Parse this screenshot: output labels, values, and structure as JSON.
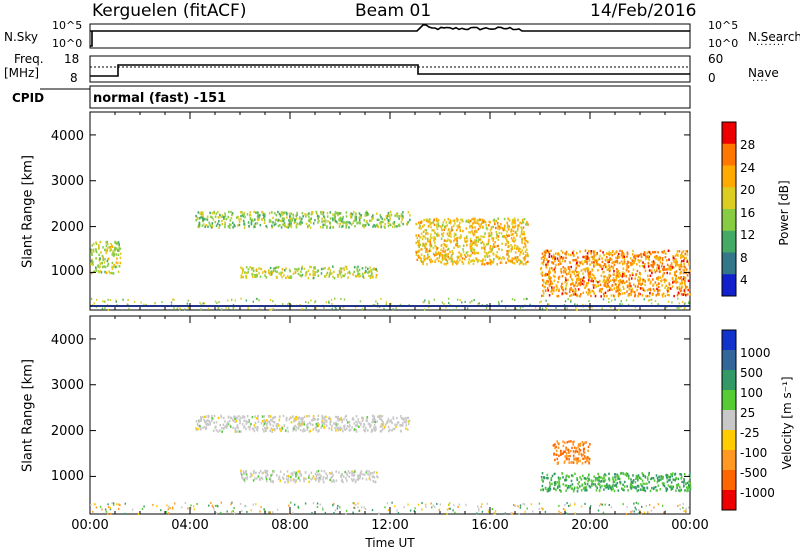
{
  "header": {
    "station": "Kerguelen (fitACF)",
    "beam": "Beam 01",
    "date": "14/Feb/2016"
  },
  "panels": {
    "nsky_label": "N.Sky",
    "nsky_ticks": [
      "10^5",
      "10^0"
    ],
    "nsearch_label": "N.Search",
    "nsearch_ticks": [
      "10^5",
      "10^0"
    ],
    "freq_label_1": "Freq.",
    "freq_label_2": "[MHz]",
    "freq_ticks": [
      "18",
      "8"
    ],
    "nave_label": "Nave",
    "nave_ticks": [
      "60",
      "0"
    ],
    "cpid_label": "CPID",
    "mode_text": "normal (fast) -151"
  },
  "axes": {
    "ylabel_top": "Slant Range [km]",
    "ylabel_bottom": "Slant Range [km]",
    "yticks": [
      "4000",
      "3000",
      "2000",
      "1000"
    ],
    "xticks": [
      "00:00",
      "04:00",
      "08:00",
      "12:00",
      "16:00",
      "20:00",
      "00:00"
    ],
    "xlabel": "Time UT"
  },
  "power_scale": {
    "label": "Power [dB]",
    "ticks": [
      "28",
      "24",
      "20",
      "16",
      "12",
      "8",
      "4"
    ],
    "colors": [
      "#ee0000",
      "#ff7700",
      "#ffaa00",
      "#ddcc22",
      "#88cc44",
      "#44aa66",
      "#337788",
      "#1122cc"
    ]
  },
  "velocity_scale": {
    "label": "Velocity [m s⁻¹]",
    "ticks": [
      "1000",
      "500",
      "100",
      "25",
      "-25",
      "-100",
      "-500",
      "-1000"
    ],
    "colors": [
      "#1133cc",
      "#336699",
      "#339966",
      "#55cc33",
      "#c8c8c8",
      "#ffcc00",
      "#ff9922",
      "#ff6600",
      "#ee0000"
    ]
  },
  "chart_data": [
    {
      "type": "heatmap",
      "title": "Power",
      "xlabel": "Time UT",
      "ylabel": "Slant Range [km]",
      "xlim": [
        "00:00",
        "24:00"
      ],
      "ylim": [
        180,
        4500
      ],
      "scatter_bands": [
        {
          "t0": 4.2,
          "t1": 12.8,
          "r0": 2000,
          "r1": 2350,
          "level": 12
        },
        {
          "t0": 6.0,
          "t1": 11.5,
          "r0": 900,
          "r1": 1150,
          "level": 14
        },
        {
          "t0": 13.0,
          "t1": 17.5,
          "r0": 1200,
          "r1": 2200,
          "level": 18
        },
        {
          "t0": 18.0,
          "t1": 24.0,
          "r0": 500,
          "r1": 1500,
          "level": 22
        },
        {
          "t0": 0.0,
          "t1": 1.2,
          "r0": 1000,
          "r1": 1700,
          "level": 14
        }
      ]
    },
    {
      "type": "heatmap",
      "title": "Velocity",
      "xlabel": "Time UT",
      "ylabel": "Slant Range [km]",
      "xlim": [
        "00:00",
        "24:00"
      ],
      "ylim": [
        180,
        4500
      ],
      "scatter_bands": [
        {
          "t0": 4.2,
          "t1": 12.8,
          "r0": 2000,
          "r1": 2350,
          "velocity": 0
        },
        {
          "t0": 6.0,
          "t1": 11.5,
          "r0": 900,
          "r1": 1150,
          "velocity": 0
        },
        {
          "t0": 18.5,
          "t1": 20.0,
          "r0": 1300,
          "r1": 1800,
          "velocity": -300
        },
        {
          "t0": 18.0,
          "t1": 24.0,
          "r0": 700,
          "r1": 1100,
          "velocity": 60
        }
      ]
    }
  ]
}
